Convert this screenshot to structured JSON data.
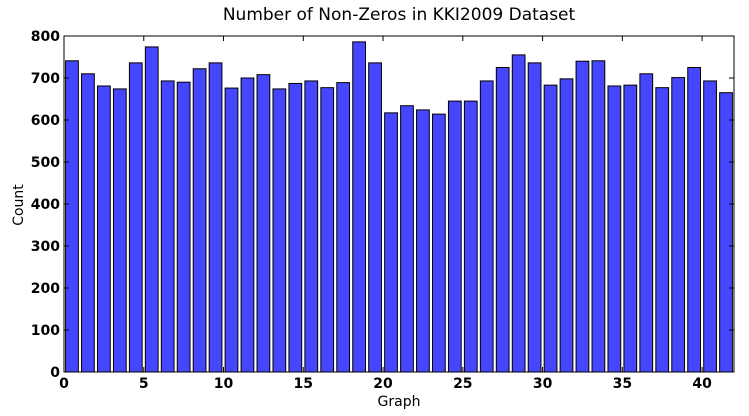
{
  "chart_data": {
    "type": "bar",
    "title": "Number of Non-Zeros in KKI2009 Dataset",
    "xlabel": "Graph",
    "ylabel": "Count",
    "xlim": [
      0,
      42
    ],
    "ylim": [
      0,
      800
    ],
    "xticks": [
      0,
      5,
      10,
      15,
      20,
      25,
      30,
      35,
      40
    ],
    "yticks": [
      0,
      100,
      200,
      300,
      400,
      500,
      600,
      700,
      800
    ],
    "bar_color": "#4646ff",
    "bar_width": 0.8,
    "x": [
      0,
      1,
      2,
      3,
      4,
      5,
      6,
      7,
      8,
      9,
      10,
      11,
      12,
      13,
      14,
      15,
      16,
      17,
      18,
      19,
      20,
      21,
      22,
      23,
      24,
      25,
      26,
      27,
      28,
      29,
      30,
      31,
      32,
      33,
      34,
      35,
      36,
      37,
      38,
      39,
      40,
      41
    ],
    "values": [
      741,
      710,
      681,
      674,
      736,
      774,
      693,
      690,
      722,
      736,
      676,
      700,
      708,
      674,
      687,
      693,
      677,
      689,
      786,
      736,
      617,
      634,
      624,
      614,
      645,
      645,
      693,
      725,
      755,
      736,
      683,
      698,
      740,
      741,
      681,
      683,
      710,
      677,
      701,
      725,
      693,
      665
    ],
    "grid": false,
    "legend": "none"
  }
}
